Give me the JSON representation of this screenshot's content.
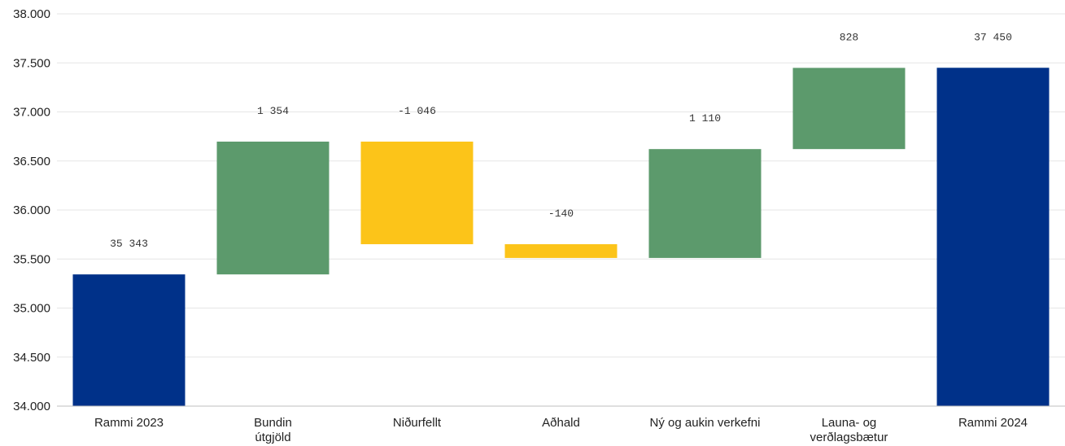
{
  "chart_data": {
    "type": "waterfall",
    "categories": [
      [
        "Rammi 2023"
      ],
      [
        "Bundin",
        "útgjöld"
      ],
      [
        "Niðurfellt"
      ],
      [
        "Aðhald"
      ],
      [
        "Ný og aukin verkefni"
      ],
      [
        "Launa- og",
        "verðlagsbætur"
      ],
      [
        "Rammi 2024"
      ]
    ],
    "bars": [
      {
        "kind": "total",
        "from": 34000,
        "to": 35343,
        "label": "35 343",
        "color": "#003189"
      },
      {
        "kind": "increase",
        "from": 35343,
        "to": 36697,
        "label": "1 354",
        "color": "#5c9a6c"
      },
      {
        "kind": "decrease",
        "from": 36697,
        "to": 35651,
        "label": "-1 046",
        "color": "#fcc419"
      },
      {
        "kind": "decrease",
        "from": 35651,
        "to": 35511,
        "label": "-140",
        "color": "#fcc419"
      },
      {
        "kind": "increase",
        "from": 35511,
        "to": 36621,
        "label": "1 110",
        "color": "#5c9a6c"
      },
      {
        "kind": "increase",
        "from": 36621,
        "to": 37449,
        "label": "828",
        "color": "#5c9a6c"
      },
      {
        "kind": "total",
        "from": 34000,
        "to": 37450,
        "label": "37 450",
        "color": "#003189"
      }
    ],
    "y_ticks": [
      "34.000",
      "34.500",
      "35.000",
      "35.500",
      "36.000",
      "36.500",
      "37.000",
      "37.500",
      "38.000"
    ],
    "ylim": [
      34000,
      38000
    ],
    "grid": true,
    "legend": "none"
  }
}
